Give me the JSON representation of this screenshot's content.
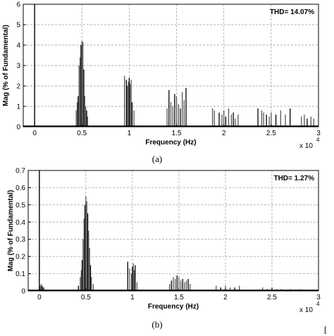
{
  "chart_data": [
    {
      "type": "bar",
      "panel_label": "(a)",
      "annotation": "THD= 14.07%",
      "xlabel": "Frequency (Hz)",
      "ylabel": "Mag (% of Fundamental)",
      "x_multiplier_label": "x 10",
      "x_multiplier_exponent": "4",
      "xlim": [
        -0.12,
        3.0
      ],
      "ylim": [
        0,
        6
      ],
      "xticks": [
        "0",
        "0.5",
        "1",
        "1.5",
        "2",
        "2.5",
        "3"
      ],
      "yticks": [
        "0",
        "1",
        "2",
        "3",
        "4",
        "5",
        "6"
      ],
      "grid": true,
      "x_units": "x 10^4 Hz",
      "spectrum": {
        "x": [
          0.0,
          0.44,
          0.45,
          0.46,
          0.47,
          0.48,
          0.49,
          0.5,
          0.51,
          0.52,
          0.53,
          0.54,
          0.55,
          0.56,
          0.95,
          0.97,
          0.98,
          0.99,
          1.0,
          1.01,
          1.02,
          1.03,
          1.05,
          1.4,
          1.42,
          1.44,
          1.46,
          1.48,
          1.5,
          1.52,
          1.54,
          1.56,
          1.58,
          1.6,
          1.88,
          1.9,
          1.95,
          1.98,
          2.0,
          2.02,
          2.05,
          2.08,
          2.1,
          2.12,
          2.15,
          2.36,
          2.4,
          2.42,
          2.45,
          2.48,
          2.5,
          2.55,
          2.6,
          2.65,
          2.7,
          2.82,
          2.85,
          2.88,
          2.92,
          2.95
        ],
        "y": [
          6.0,
          0.8,
          1.2,
          1.5,
          3.0,
          3.4,
          4.0,
          4.2,
          4.15,
          2.8,
          1.5,
          1.0,
          0.8,
          0.5,
          2.5,
          2.3,
          2.0,
          2.2,
          2.4,
          2.1,
          2.3,
          1.2,
          0.8,
          0.9,
          1.8,
          1.2,
          1.0,
          1.6,
          1.5,
          1.1,
          0.9,
          1.7,
          1.3,
          1.9,
          0.9,
          0.8,
          0.7,
          0.6,
          0.8,
          0.5,
          0.9,
          0.6,
          0.7,
          0.4,
          0.6,
          0.9,
          0.8,
          0.7,
          0.6,
          0.5,
          0.7,
          0.6,
          0.8,
          0.6,
          0.9,
          0.5,
          0.6,
          0.4,
          0.5,
          0.4
        ]
      }
    },
    {
      "type": "bar",
      "panel_label": "(b)",
      "annotation": "THD= 1.27%",
      "xlabel": "Frequency (Hz)",
      "ylabel": "Mag (% of Fundamental)",
      "x_multiplier_label": "x 10",
      "x_multiplier_exponent": "4",
      "xlim": [
        -0.12,
        3.0
      ],
      "ylim": [
        0,
        0.7
      ],
      "xticks": [
        "0",
        "0.5",
        "1",
        "1.5",
        "2",
        "2.5",
        "3"
      ],
      "yticks": [
        "0",
        "0.1",
        "0.2",
        "0.3",
        "0.4",
        "0.5",
        "0.6",
        "0.7"
      ],
      "grid": true,
      "x_units": "x 10^4 Hz",
      "spectrum": {
        "x": [
          0.0,
          0.01,
          0.02,
          0.03,
          0.04,
          0.05,
          0.42,
          0.44,
          0.45,
          0.46,
          0.47,
          0.48,
          0.49,
          0.5,
          0.51,
          0.52,
          0.53,
          0.54,
          0.55,
          0.56,
          0.58,
          0.95,
          0.97,
          0.99,
          1.0,
          1.01,
          1.02,
          1.03,
          1.05,
          1.4,
          1.42,
          1.44,
          1.46,
          1.48,
          1.5,
          1.52,
          1.54,
          1.56,
          1.58,
          1.6,
          1.62,
          1.9,
          1.95,
          2.0,
          2.05,
          2.1,
          2.15,
          2.4,
          2.45,
          2.5,
          2.55,
          2.6,
          2.7,
          2.8
        ],
        "y": [
          0.7,
          0.03,
          0.04,
          0.03,
          0.02,
          0.02,
          0.03,
          0.08,
          0.12,
          0.18,
          0.3,
          0.42,
          0.5,
          0.55,
          0.52,
          0.45,
          0.35,
          0.25,
          0.15,
          0.08,
          0.04,
          0.17,
          0.13,
          0.1,
          0.14,
          0.16,
          0.12,
          0.15,
          0.05,
          0.04,
          0.06,
          0.08,
          0.07,
          0.09,
          0.08,
          0.06,
          0.07,
          0.05,
          0.06,
          0.07,
          0.04,
          0.03,
          0.02,
          0.03,
          0.02,
          0.02,
          0.03,
          0.02,
          0.01,
          0.02,
          0.01,
          0.01,
          0.01,
          0.01
        ]
      }
    }
  ],
  "corner_mark": "["
}
